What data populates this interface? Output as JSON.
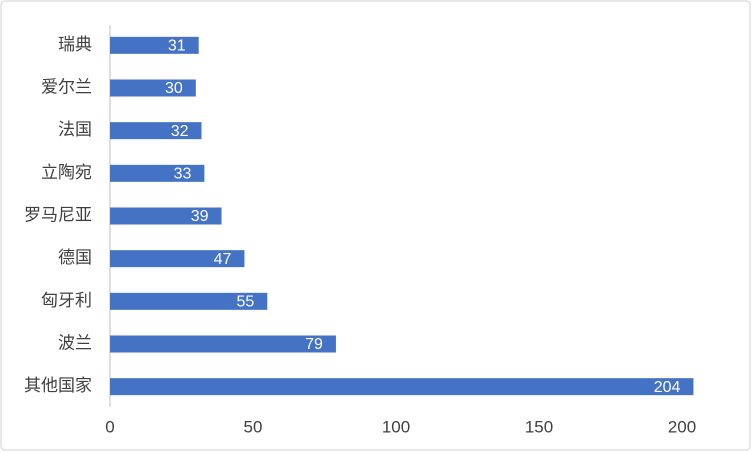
{
  "chart_data": {
    "type": "bar",
    "orientation": "horizontal",
    "categories": [
      "瑞典",
      "爱尔兰",
      "法国",
      "立陶宛",
      "罗马尼亚",
      "德国",
      "匈牙利",
      "波兰",
      "其他国家"
    ],
    "values": [
      31,
      30,
      32,
      33,
      39,
      47,
      55,
      79,
      204
    ],
    "color": "#4472c4",
    "xlim": [
      0,
      200
    ],
    "xticks": [
      0,
      50,
      100,
      150,
      200
    ],
    "grid": false
  }
}
